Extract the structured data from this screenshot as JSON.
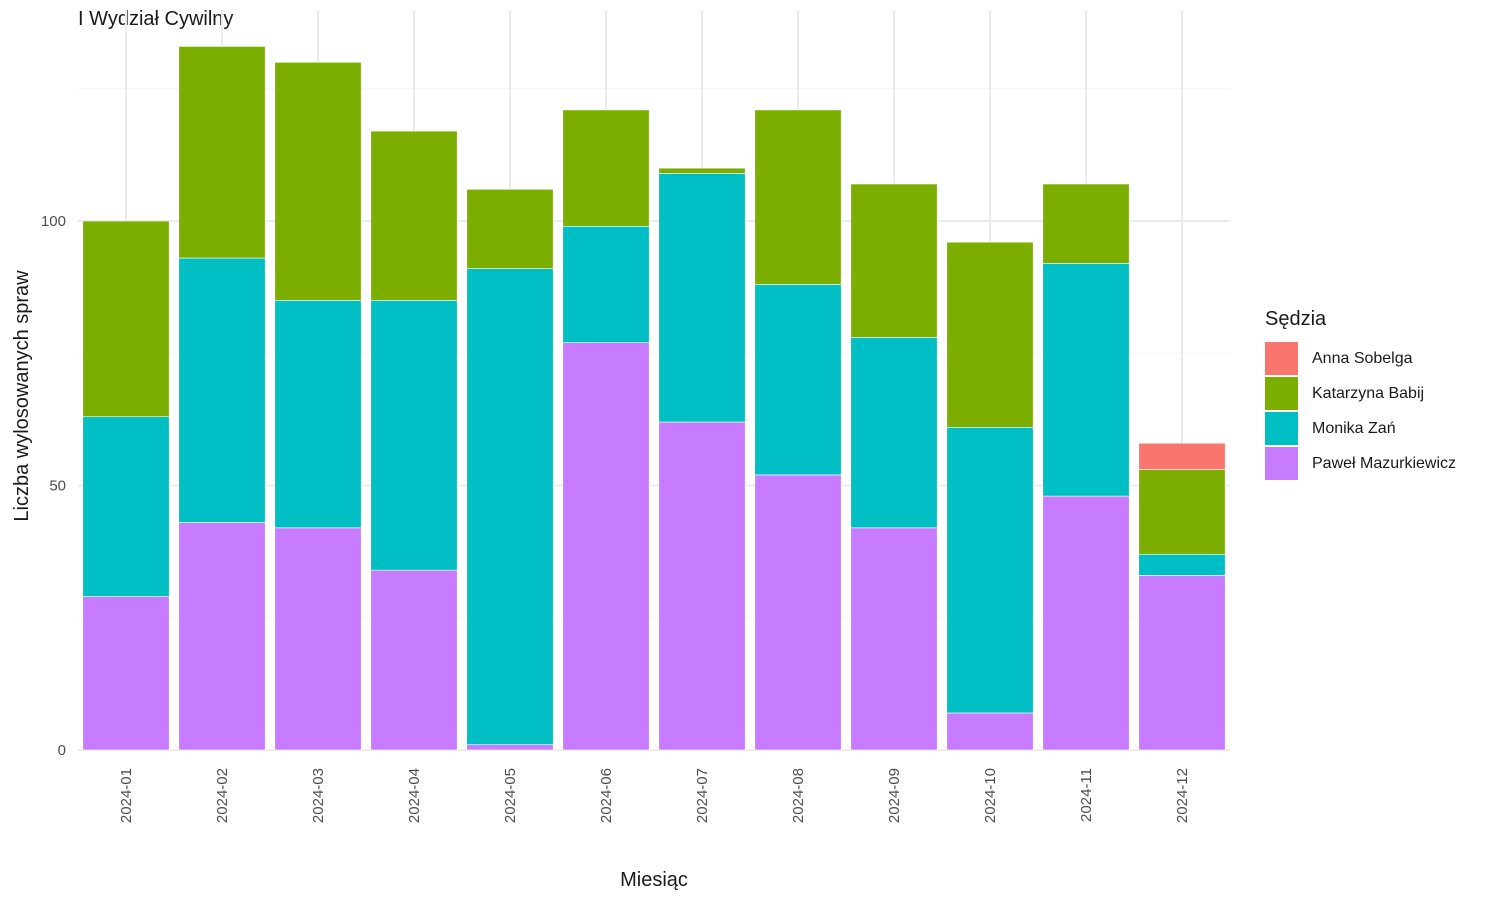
{
  "chart_data": {
    "type": "bar",
    "stacked": true,
    "title": "I Wydział Cywilny",
    "xlabel": "Miesiąc",
    "ylabel": "Liczba wylosowanych spraw",
    "ylim": [
      0,
      138
    ],
    "yticks": [
      0,
      50,
      100
    ],
    "grid": true,
    "legend_position": "right",
    "legend_title": "Sędzia",
    "categories": [
      "2024-01",
      "2024-02",
      "2024-03",
      "2024-04",
      "2024-05",
      "2024-06",
      "2024-07",
      "2024-08",
      "2024-09",
      "2024-10",
      "2024-11",
      "2024-12"
    ],
    "series": [
      {
        "name": "Anna Sobelga",
        "color": "#F8766D",
        "values": [
          0,
          0,
          0,
          0,
          0,
          0,
          0,
          0,
          0,
          0,
          0,
          5
        ]
      },
      {
        "name": "Katarzyna Babij",
        "color": "#7CAE00",
        "values": [
          37,
          40,
          45,
          32,
          15,
          22,
          1,
          33,
          29,
          35,
          15,
          16
        ]
      },
      {
        "name": "Monika Zań",
        "color": "#00BFC4",
        "values": [
          34,
          50,
          43,
          51,
          90,
          22,
          47,
          36,
          36,
          54,
          44,
          4
        ]
      },
      {
        "name": "Paweł Mazurkiewicz",
        "color": "#C77CFF",
        "values": [
          29,
          43,
          42,
          34,
          1,
          77,
          62,
          52,
          42,
          7,
          48,
          33
        ]
      }
    ]
  }
}
